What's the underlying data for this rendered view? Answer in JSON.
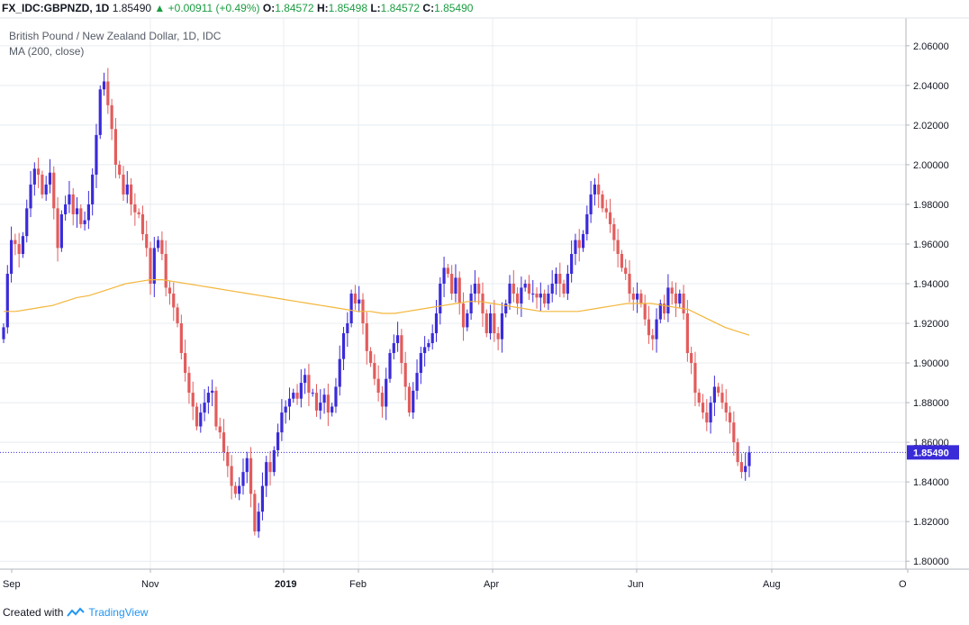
{
  "header": {
    "symbol": "FX_IDC:GBPNZD, 1D",
    "last": "1.85490",
    "change": "+0.00911 (+0.49%)",
    "o_label": "O:",
    "o_value": "1.84572",
    "h_label": "H:",
    "h_value": "1.85498",
    "l_label": "L:",
    "l_value": "1.84572",
    "c_label": "C:",
    "c_value": "1.85490"
  },
  "footer": {
    "created_with": "Created with",
    "brand": "TradingView"
  },
  "colors": {
    "up": "#3a2bd9",
    "down": "#e25c5c",
    "ma": "#f3b63b",
    "grid": "#e8ecf1",
    "price_line": "#3a2bd9",
    "header_up": "#1a9c40"
  },
  "chart_data": {
    "type": "candlestick",
    "title": "British Pound / New Zealand Dollar, 1D, IDC",
    "indicator_label": "MA (200, close)",
    "y_ticks": [
      "2.06000",
      "2.04000",
      "2.02000",
      "2.00000",
      "1.98000",
      "1.96000",
      "1.94000",
      "1.92000",
      "1.90000",
      "1.88000",
      "1.86000",
      "1.84000",
      "1.82000",
      "1.80000"
    ],
    "ylim": [
      1.796,
      2.074
    ],
    "x_ticks": [
      "Sep",
      "Nov",
      "2019",
      "Feb",
      "Apr",
      "Jun",
      "Aug",
      "O"
    ],
    "bold_ticks": [
      "2019"
    ],
    "grid": true,
    "last_price_label": "1.85490",
    "last_price": 1.8549,
    "close_series": [
      1.918,
      1.945,
      1.962,
      1.96,
      1.955,
      1.964,
      1.978,
      1.99,
      1.998,
      1.995,
      1.985,
      1.99,
      1.996,
      1.978,
      1.958,
      1.975,
      1.98,
      1.985,
      1.975,
      1.978,
      1.97,
      1.972,
      1.98,
      1.995,
      2.015,
      2.038,
      2.042,
      2.03,
      2.018,
      2.0,
      1.995,
      1.985,
      1.99,
      1.98,
      1.976,
      1.975,
      1.965,
      1.958,
      1.94,
      1.958,
      1.962,
      1.955,
      1.938,
      1.935,
      1.928,
      1.92,
      1.905,
      1.895,
      1.885,
      1.878,
      1.868,
      1.875,
      1.88,
      1.885,
      1.886,
      1.868,
      1.865,
      1.855,
      1.848,
      1.838,
      1.834,
      1.838,
      1.845,
      1.852,
      1.834,
      1.815,
      1.825,
      1.838,
      1.85,
      1.845,
      1.856,
      1.865,
      1.875,
      1.878,
      1.882,
      1.885,
      1.882,
      1.89,
      1.894,
      1.885,
      1.885,
      1.876,
      1.88,
      1.884,
      1.875,
      1.878,
      1.888,
      1.902,
      1.915,
      1.92,
      1.935,
      1.93,
      1.932,
      1.92,
      1.906,
      1.9,
      1.892,
      1.885,
      1.878,
      1.892,
      1.905,
      1.91,
      1.914,
      1.9,
      1.888,
      1.875,
      1.886,
      1.895,
      1.905,
      1.908,
      1.91,
      1.915,
      1.925,
      1.94,
      1.948,
      1.945,
      1.935,
      1.943,
      1.93,
      1.918,
      1.925,
      1.935,
      1.94,
      1.935,
      1.925,
      1.915,
      1.925,
      1.915,
      1.912,
      1.925,
      1.93,
      1.94,
      1.935,
      1.93,
      1.938,
      1.94,
      1.935,
      1.935,
      1.933,
      1.935,
      1.93,
      1.935,
      1.94,
      1.945,
      1.94,
      1.935,
      1.945,
      1.955,
      1.962,
      1.958,
      1.965,
      1.975,
      1.985,
      1.99,
      1.985,
      1.978,
      1.976,
      1.97,
      1.962,
      1.955,
      1.948,
      1.945,
      1.935,
      1.932,
      1.935,
      1.93,
      1.922,
      1.914,
      1.912,
      1.922,
      1.93,
      1.925,
      1.938,
      1.935,
      1.93,
      1.935,
      1.925,
      1.905,
      1.9,
      1.885,
      1.88,
      1.875,
      1.87,
      1.88,
      1.888,
      1.885,
      1.88,
      1.875,
      1.87,
      1.86,
      1.85,
      1.845,
      1.848,
      1.8549
    ],
    "ma_series": [
      1.926,
      1.926,
      1.927,
      1.928,
      1.929,
      1.931,
      1.933,
      1.934,
      1.936,
      1.938,
      1.94,
      1.941,
      1.942,
      1.942,
      1.941,
      1.94,
      1.939,
      1.938,
      1.937,
      1.936,
      1.935,
      1.934,
      1.933,
      1.932,
      1.931,
      1.93,
      1.929,
      1.928,
      1.927,
      1.926,
      1.926,
      1.925,
      1.925,
      1.926,
      1.927,
      1.928,
      1.929,
      1.93,
      1.931,
      1.931,
      1.93,
      1.929,
      1.928,
      1.927,
      1.926,
      1.926,
      1.926,
      1.926,
      1.927,
      1.928,
      1.929,
      1.93,
      1.93,
      1.93,
      1.929,
      1.928,
      1.927,
      1.924,
      1.921,
      1.918,
      1.916,
      1.914
    ],
    "ma_start_index": 0
  }
}
